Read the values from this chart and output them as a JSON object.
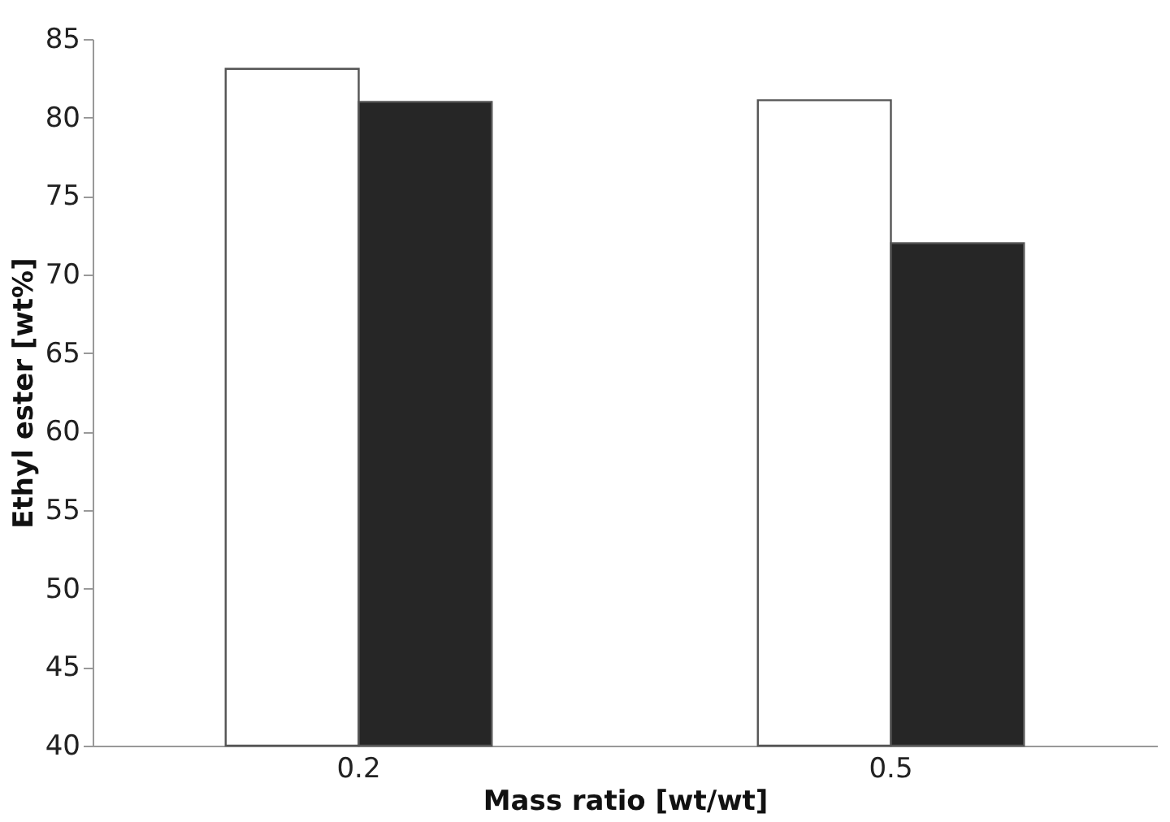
{
  "chart_data": {
    "type": "bar",
    "xlabel": "Mass ratio [wt/wt]",
    "ylabel": "Ethyl ester [wt%]",
    "categories": [
      "0.2",
      "0.5"
    ],
    "series": [
      {
        "color": "#ffffff",
        "values": [
          83.1,
          81.1
        ]
      },
      {
        "color": "#262626",
        "values": [
          81,
          72
        ]
      }
    ],
    "ylim": [
      40,
      85
    ],
    "yticks": [
      40,
      45,
      50,
      55,
      60,
      65,
      70,
      75,
      80,
      85
    ],
    "grid": false
  }
}
